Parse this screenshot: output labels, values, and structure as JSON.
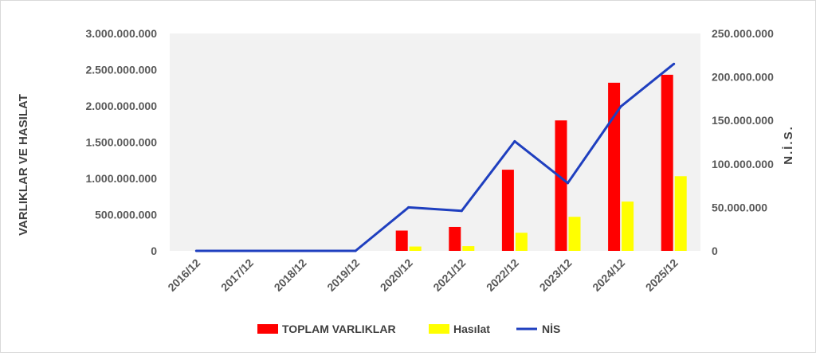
{
  "chart_data": {
    "type": "bar",
    "categories": [
      "2016/12",
      "2017/12",
      "2018/12",
      "2019/12",
      "2020/12",
      "2021/12",
      "2022/12",
      "2023/12",
      "2024/12",
      "2025/12"
    ],
    "series": [
      {
        "name": "TOPLAM VARLIKLAR",
        "type": "bar",
        "axis": "left",
        "color": "#ff0000",
        "values": [
          0,
          0,
          0,
          0,
          280000000,
          330000000,
          1120000000,
          1800000000,
          2320000000,
          2430000000
        ]
      },
      {
        "name": "Hasılat",
        "type": "bar",
        "axis": "left",
        "color": "#ffff00",
        "values": [
          0,
          0,
          0,
          0,
          60000000,
          65000000,
          250000000,
          470000000,
          680000000,
          1030000000
        ]
      },
      {
        "name": "NİS",
        "type": "line",
        "axis": "right",
        "color": "#1f3fbf",
        "values": [
          0,
          0,
          0,
          0,
          50000000,
          46000000,
          126000000,
          78000000,
          166000000,
          215000000
        ]
      }
    ],
    "ylabel": "VARLIKLAR VE HASILAT",
    "ylim": [
      0,
      3000000000
    ],
    "y_ticks": [
      "0",
      "500.000.000",
      "1.000.000.000",
      "1.500.000.000",
      "2.000.000.000",
      "2.500.000.000",
      "3.000.000.000"
    ],
    "y2label": "N.İ.S.",
    "y2lim": [
      0,
      250000000
    ],
    "y2_ticks": [
      "0",
      "50.000.000",
      "100.000.000",
      "150.000.000",
      "200.000.000",
      "250.000.000"
    ],
    "legend": "bottom",
    "grid": false,
    "plot_background": "#f2f2f2"
  }
}
